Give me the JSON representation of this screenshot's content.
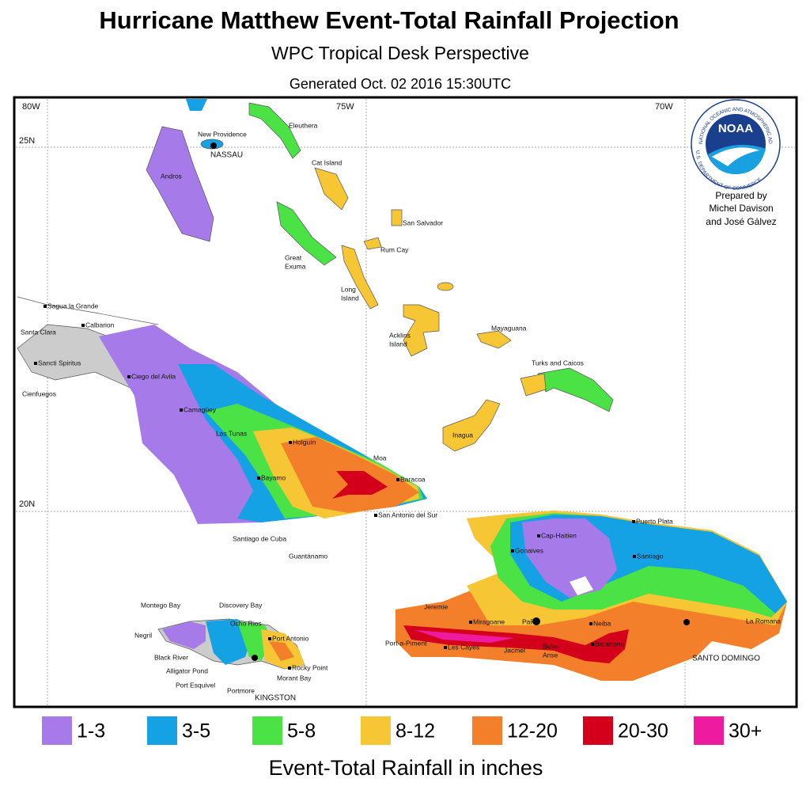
{
  "title": "Hurricane Matthew Event-Total Rainfall Projection",
  "subtitle": "WPC Tropical Desk Perspective",
  "generated": "Generated Oct. 02 2016 15:30UTC",
  "grid_labels": [
    "80W",
    "75W",
    "70W",
    "25N",
    "20N"
  ],
  "logo": {
    "name": "NOAA",
    "ring": "NATIONAL OCEANIC AND ATMOSPHERIC ADMINISTRATION",
    "bottom": "U.S. DEPARTMENT OF COMMERCE"
  },
  "credit": [
    "Prepared by",
    "Michel Davison",
    "and José Gálvez"
  ],
  "places": [
    {
      "label": "New Providence"
    },
    {
      "label": "NASSAU"
    },
    {
      "label": "Eleuthera"
    },
    {
      "label": "Andros"
    },
    {
      "label": "Cat Island"
    },
    {
      "label": "San Salvador"
    },
    {
      "label": "Rum Cay"
    },
    {
      "label": "Great"
    },
    {
      "label": "Exuma"
    },
    {
      "label": "Long"
    },
    {
      "label": "Island"
    },
    {
      "label": "Acklins"
    },
    {
      "label": "Island"
    },
    {
      "label": "Mayaguana"
    },
    {
      "label": "Turks and Caicos"
    },
    {
      "label": "Inagua"
    },
    {
      "label": "Sagua la Grande"
    },
    {
      "label": "Calbarion"
    },
    {
      "label": "Santa Clara"
    },
    {
      "label": "Sancti Spiritus"
    },
    {
      "label": "Cienfuegos"
    },
    {
      "label": "Ciego del Avila"
    },
    {
      "label": "Camagüey"
    },
    {
      "label": "Las Tunas"
    },
    {
      "label": "Holguín"
    },
    {
      "label": "Moa"
    },
    {
      "label": "Baracoa"
    },
    {
      "label": "Bayamo"
    },
    {
      "label": "San Antonio del Sur"
    },
    {
      "label": "Santiago de Cuba"
    },
    {
      "label": "Guantánamo"
    },
    {
      "label": "Cap-Haitien"
    },
    {
      "label": "Puerto Plata"
    },
    {
      "label": "Gonaives"
    },
    {
      "label": "Santiago"
    },
    {
      "label": "Jeremie"
    },
    {
      "label": "Miragoane"
    },
    {
      "label": "PaP"
    },
    {
      "label": "Neiba"
    },
    {
      "label": "La Romana"
    },
    {
      "label": "Port-a-Piment"
    },
    {
      "label": "Les Cayes"
    },
    {
      "label": "Jacmel"
    },
    {
      "label": "Belle-"
    },
    {
      "label": "Anse"
    },
    {
      "label": "Barahona"
    },
    {
      "label": "SANTO DOMINGO"
    },
    {
      "label": "Montego Bay"
    },
    {
      "label": "Discovery Bay"
    },
    {
      "label": "Negril"
    },
    {
      "label": "Ocho Rios"
    },
    {
      "label": "Port Antonio"
    },
    {
      "label": "Black River"
    },
    {
      "label": "Alligator Pond"
    },
    {
      "label": "Rocky Point"
    },
    {
      "label": "Morant Bay"
    },
    {
      "label": "Port Esquivel"
    },
    {
      "label": "Portmore"
    },
    {
      "label": "KINGSTON"
    }
  ],
  "legend": {
    "title": "Event-Total Rainfall in inches",
    "items": [
      {
        "label": "1-3",
        "color": "#a67be9"
      },
      {
        "label": "3-5",
        "color": "#14a2e4"
      },
      {
        "label": "5-8",
        "color": "#4be246"
      },
      {
        "label": "8-12",
        "color": "#f7c634"
      },
      {
        "label": "12-20",
        "color": "#f47f2a"
      },
      {
        "label": "20-30",
        "color": "#d4001b"
      },
      {
        "label": "30+",
        "color": "#ee1aa0"
      }
    ]
  }
}
